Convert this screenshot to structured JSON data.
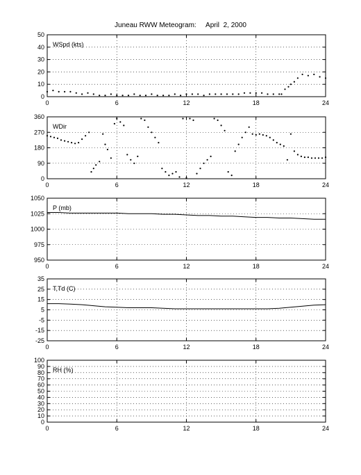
{
  "title": "Juneau RWW Meteogram:     April  2, 2000",
  "chart_data": [
    {
      "type": "scatter",
      "label": "WSpd (kts)",
      "xlim": [
        0,
        24
      ],
      "xticks": [
        "0",
        "6",
        "12",
        "18",
        "24"
      ],
      "ylim": [
        0,
        50
      ],
      "yticks": [
        "0",
        "10",
        "20",
        "30",
        "40",
        "50"
      ],
      "grid": true,
      "series": [
        {
          "x": [
            0,
            0.5,
            1,
            1.5,
            2,
            2.5,
            3,
            3.5,
            4,
            4.5,
            5,
            5.5,
            6,
            6.5,
            7,
            7.5,
            8,
            8.5,
            9,
            9.5,
            10,
            10.5,
            11,
            11.5,
            12,
            12.5,
            13,
            13.5,
            14,
            14.5,
            15,
            15.5,
            16,
            16.5,
            17,
            17.5,
            18,
            18.5,
            19,
            19.5,
            20,
            20.2,
            20.5,
            20.8,
            21,
            21.3,
            21.6,
            22,
            22.5,
            23,
            23.5,
            24
          ],
          "values": [
            4,
            5,
            4,
            4,
            4,
            3,
            2,
            3,
            2,
            1,
            1,
            2,
            1,
            1,
            1,
            2,
            1,
            1,
            2,
            1,
            1,
            1,
            2,
            1,
            2,
            2,
            2,
            1,
            2,
            2,
            2,
            2,
            2,
            2,
            3,
            3,
            3,
            3,
            2,
            2,
            2,
            2,
            6,
            8,
            10,
            12,
            15,
            18,
            17,
            18,
            16,
            15
          ]
        }
      ]
    },
    {
      "type": "scatter",
      "label": "WDir",
      "xlim": [
        0,
        24
      ],
      "xticks": [
        "0",
        "6",
        "12",
        "18",
        "24"
      ],
      "ylim": [
        0,
        360
      ],
      "yticks": [
        "0",
        "90",
        "180",
        "270",
        "360"
      ],
      "grid": true,
      "series": [
        {
          "x": [
            0,
            0.3,
            0.6,
            0.9,
            1.2,
            1.5,
            1.8,
            2.1,
            2.4,
            2.7,
            3,
            3.3,
            3.6,
            3.8,
            4,
            4.2,
            4.5,
            4.8,
            5,
            5.2,
            5.5,
            5.8,
            6,
            6.3,
            6.6,
            6.9,
            7.2,
            7.5,
            7.8,
            8.1,
            8.4,
            8.7,
            9,
            9.3,
            9.6,
            9.9,
            10.2,
            10.5,
            10.8,
            11.1,
            11.4,
            11.7,
            12,
            12.3,
            12.6,
            12.9,
            13.2,
            13.5,
            13.8,
            14.1,
            14.4,
            14.7,
            15,
            15.3,
            15.6,
            15.9,
            16.2,
            16.5,
            16.8,
            17.1,
            17.4,
            17.7,
            18,
            18.3,
            18.6,
            18.9,
            19.2,
            19.5,
            19.8,
            20.1,
            20.4,
            20.7,
            21,
            21.3,
            21.6,
            21.9,
            22.2,
            22.5,
            22.8,
            23.1,
            23.4,
            23.7,
            24
          ],
          "values": [
            250,
            245,
            240,
            235,
            225,
            220,
            215,
            210,
            205,
            210,
            230,
            250,
            270,
            40,
            60,
            80,
            100,
            260,
            200,
            170,
            120,
            320,
            350,
            330,
            310,
            140,
            110,
            90,
            130,
            350,
            340,
            300,
            270,
            240,
            210,
            60,
            40,
            20,
            30,
            40,
            10,
            350,
            5,
            350,
            340,
            30,
            60,
            90,
            110,
            130,
            350,
            340,
            310,
            280,
            40,
            20,
            160,
            200,
            240,
            270,
            300,
            260,
            255,
            260,
            255,
            250,
            240,
            225,
            210,
            200,
            190,
            110,
            260,
            160,
            140,
            130,
            125,
            125,
            120,
            120,
            120,
            120,
            125
          ]
        }
      ]
    },
    {
      "type": "line",
      "label": "P (mb)",
      "xlim": [
        0,
        24
      ],
      "xticks": [
        "0",
        "6",
        "12",
        "18",
        "24"
      ],
      "ylim": [
        950,
        1050
      ],
      "yticks": [
        "950",
        "975",
        "1000",
        "1025",
        "1050"
      ],
      "grid": true,
      "series": [
        {
          "x": [
            0,
            1,
            2,
            3,
            4,
            5,
            6,
            7,
            8,
            9,
            10,
            11,
            12,
            13,
            14,
            15,
            16,
            17,
            18,
            19,
            20,
            21,
            22,
            23,
            24
          ],
          "values": [
            1027,
            1027,
            1026,
            1026,
            1026,
            1026,
            1026,
            1025,
            1025,
            1025,
            1024,
            1024,
            1023,
            1022,
            1022,
            1021,
            1021,
            1020,
            1019,
            1019,
            1018,
            1018,
            1017,
            1016,
            1016
          ]
        }
      ]
    },
    {
      "type": "line",
      "label": "T,Td (C)",
      "xlim": [
        0,
        24
      ],
      "xticks": [
        "0",
        "6",
        "12",
        "18",
        "24"
      ],
      "ylim": [
        -25,
        35
      ],
      "yticks": [
        "-25",
        "-15",
        "-5",
        "5",
        "15",
        "25",
        "35"
      ],
      "grid": true,
      "series": [
        {
          "x": [
            0,
            1,
            2,
            3,
            4,
            5,
            6,
            7,
            8,
            9,
            10,
            11,
            12,
            13,
            14,
            15,
            16,
            17,
            18,
            19,
            20,
            21,
            22,
            23,
            24
          ],
          "values": [
            11,
            11,
            10.5,
            10,
            9,
            8,
            7.5,
            7,
            7,
            7,
            6.5,
            6,
            6,
            6,
            6,
            6,
            6,
            6,
            6,
            6,
            6.5,
            7.5,
            8.5,
            9.5,
            10
          ]
        }
      ]
    },
    {
      "type": "line",
      "label": "RH (%)",
      "xlim": [
        0,
        24
      ],
      "xticks": [
        "0",
        "6",
        "12",
        "18",
        "24"
      ],
      "ylim": [
        0,
        100
      ],
      "yticks": [
        "0",
        "10",
        "20",
        "30",
        "40",
        "50",
        "60",
        "70",
        "80",
        "90",
        "100"
      ],
      "grid": true,
      "series": []
    }
  ]
}
